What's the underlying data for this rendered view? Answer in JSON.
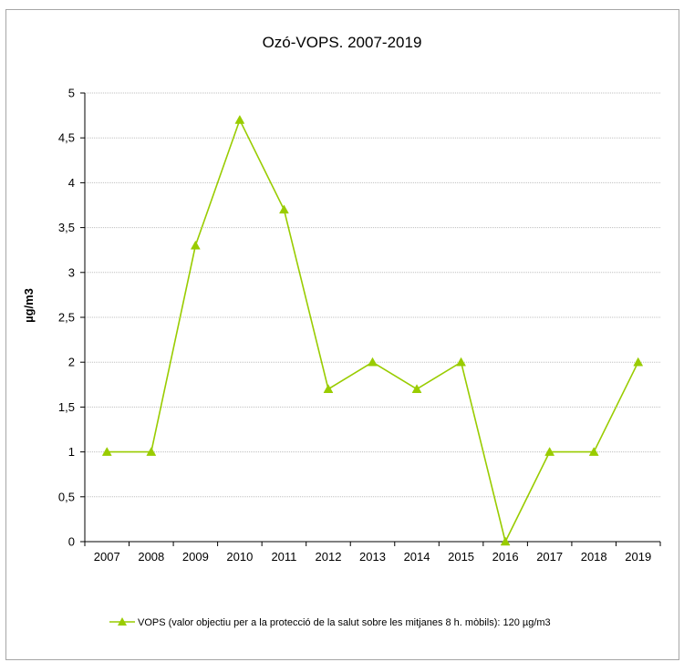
{
  "chart_data": {
    "type": "line",
    "title": "Ozó-VOPS. 2007-2019",
    "xlabel": "",
    "ylabel": "µg/m3",
    "categories": [
      "2007",
      "2008",
      "2009",
      "2010",
      "2011",
      "2012",
      "2013",
      "2014",
      "2015",
      "2016",
      "2017",
      "2018",
      "2019"
    ],
    "series": [
      {
        "name": "VOPS (valor objectiu per a la protecció de la salut sobre les mitjanes 8 h. mòbils): 120 µg/m3",
        "values": [
          1,
          1,
          3.3,
          4.7,
          3.7,
          1.7,
          2,
          1.7,
          2,
          0,
          1,
          1,
          2
        ]
      }
    ],
    "ylim": [
      0,
      5
    ],
    "yticks": [
      "0",
      "0,5",
      "1",
      "1,5",
      "2",
      "2,5",
      "3",
      "3,5",
      "4",
      "4,5",
      "5"
    ],
    "grid": true,
    "legend_position": "bottom",
    "series_color": "#99cc00",
    "grid_color": "#bfbfbf"
  }
}
